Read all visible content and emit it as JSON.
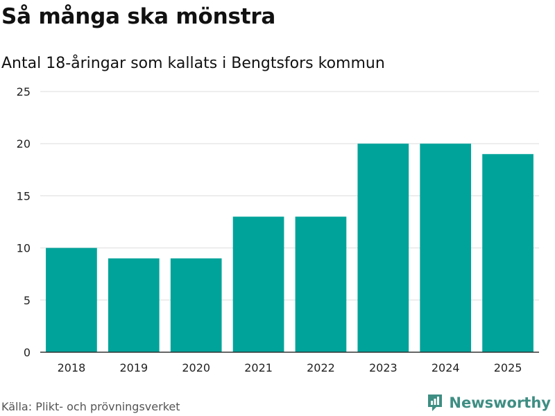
{
  "header": {
    "title": "Så många ska mönstra",
    "subtitle": "Antal 18-åringar som kallats i Bengtsfors kommun"
  },
  "footer": {
    "source": "Källa: Plikt- och prövningsverket",
    "brand": "Newsworthy"
  },
  "colors": {
    "bar": "#00a39a",
    "grid": "#dddddd",
    "axis": "#333333",
    "brand": "#3e8e83"
  },
  "chart_data": {
    "type": "bar",
    "title": "Så många ska mönstra",
    "subtitle": "Antal 18-åringar som kallats i Bengtsfors kommun",
    "xlabel": "",
    "ylabel": "",
    "categories": [
      "2018",
      "2019",
      "2020",
      "2021",
      "2022",
      "2023",
      "2024",
      "2025"
    ],
    "values": [
      10,
      9,
      9,
      13,
      13,
      20,
      20,
      19
    ],
    "ylim": [
      0,
      25
    ],
    "yticks": [
      0,
      5,
      10,
      15,
      20,
      25
    ],
    "grid": true,
    "legend": "none"
  }
}
